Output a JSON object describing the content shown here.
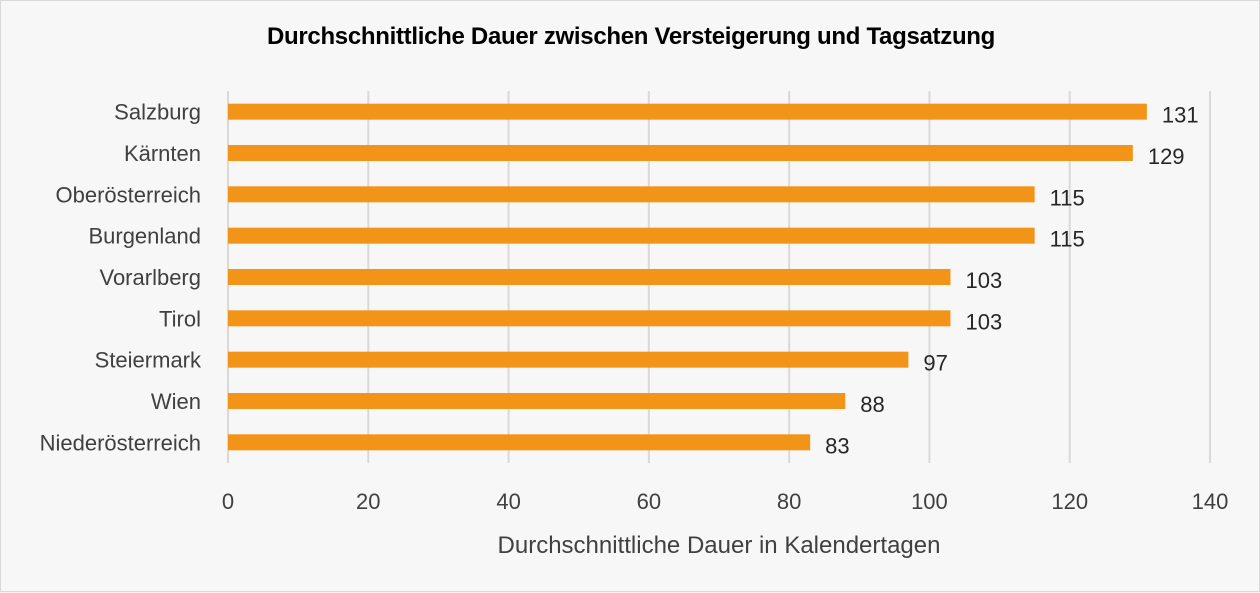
{
  "chart_data": {
    "type": "bar",
    "orientation": "horizontal",
    "title": "Durchschnittliche Dauer zwischen Versteigerung und Tagsatzung",
    "xlabel": "Durchschnittliche Dauer in Kalendertagen",
    "ylabel": "",
    "categories": [
      "Salzburg",
      "Kärnten",
      "Oberösterreich",
      "Burgenland",
      "Vorarlberg",
      "Tirol",
      "Steiermark",
      "Wien",
      "Niederösterreich"
    ],
    "values": [
      131,
      129,
      115,
      115,
      103,
      103,
      97,
      88,
      83
    ],
    "xlim": [
      0,
      140
    ],
    "xticks": [
      0,
      20,
      40,
      60,
      80,
      100,
      120,
      140
    ],
    "grid": true,
    "bar_color": "#f29418",
    "grid_color": "#d9d9d9"
  }
}
